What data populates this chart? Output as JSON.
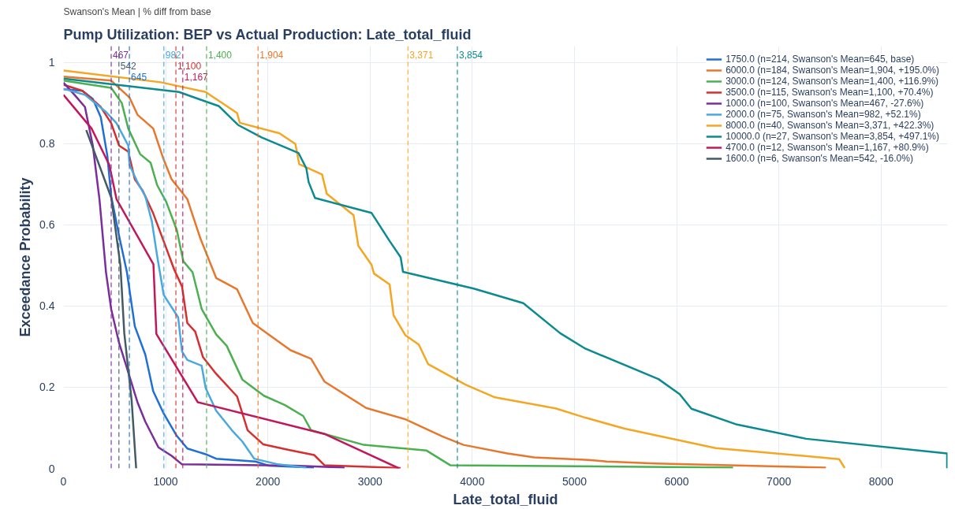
{
  "chart_data": {
    "type": "line",
    "title": "Pump Utilization: BEP vs Actual Production: Late_total_fluid",
    "subtitle": "Swanson's Mean | % diff from base",
    "xlabel": "Late_total_fluid",
    "ylabel": "Exceedance Probability",
    "xlim": [
      0,
      8650
    ],
    "ylim": [
      0,
      1.04
    ],
    "xticks": [
      0,
      1000,
      2000,
      3000,
      4000,
      5000,
      6000,
      7000,
      8000
    ],
    "yticks": [
      0,
      0.2,
      0.4,
      0.6,
      0.8,
      1
    ],
    "grid": true,
    "legend": "top right",
    "series": [
      {
        "name": "1750.0 (n=214, Swanson's Mean=645, base)",
        "color": "#1f6fd6",
        "x": [
          0,
          185,
          287,
          365,
          429,
          467,
          544,
          621,
          698,
          801,
          878,
          981,
          1109,
          1212,
          1391,
          1494,
          1879,
          2007,
          2450
        ],
        "values": [
          0.934,
          0.93,
          0.91,
          0.865,
          0.77,
          0.67,
          0.573,
          0.483,
          0.35,
          0.28,
          0.19,
          0.135,
          0.08,
          0.049,
          0.035,
          0.024,
          0.017,
          0.007,
          0.002
        ]
      },
      {
        "name": "6000.0 (n=184, Swanson's Mean=1,904, +195.0%)",
        "color": "#e8772e",
        "x": [
          0,
          467,
          647,
          724,
          878,
          981,
          1058,
          1212,
          1340,
          1494,
          1699,
          1853,
          2007,
          2222,
          2423,
          2553,
          2961,
          3345,
          3707,
          3914,
          4345,
          4606,
          5137,
          5314,
          5791,
          7460
        ],
        "values": [
          0.965,
          0.955,
          0.913,
          0.871,
          0.837,
          0.76,
          0.712,
          0.663,
          0.566,
          0.469,
          0.441,
          0.358,
          0.33,
          0.291,
          0.27,
          0.214,
          0.149,
          0.121,
          0.079,
          0.058,
          0.037,
          0.027,
          0.021,
          0.017,
          0.012,
          0.002
        ]
      },
      {
        "name": "3000.0 (n=124, Swanson's Mean=1,400, +116.9%)",
        "color": "#4caf50",
        "x": [
          0,
          467,
          570,
          634,
          750,
          852,
          916,
          1006,
          1109,
          1173,
          1263,
          1353,
          1494,
          1597,
          1750,
          1961,
          2167,
          2346,
          2423,
          2938,
          3553,
          3784,
          6552
        ],
        "values": [
          0.955,
          0.937,
          0.9,
          0.837,
          0.774,
          0.753,
          0.698,
          0.656,
          0.587,
          0.51,
          0.483,
          0.392,
          0.33,
          0.302,
          0.219,
          0.179,
          0.156,
          0.129,
          0.094,
          0.058,
          0.044,
          0.008,
          0.002
        ]
      },
      {
        "name": "3500.0 (n=115, Swanson's Mean=1,100, +70.4%)",
        "color": "#d62f2f",
        "x": [
          0,
          185,
          365,
          467,
          544,
          634,
          698,
          775,
          878,
          981,
          1083,
          1160,
          1212,
          1289,
          1365,
          1494,
          1699,
          1802,
          1956,
          2213,
          2453,
          2553,
          3299
        ],
        "values": [
          0.945,
          0.93,
          0.89,
          0.85,
          0.795,
          0.78,
          0.712,
          0.684,
          0.628,
          0.559,
          0.49,
          0.448,
          0.358,
          0.337,
          0.274,
          0.233,
          0.177,
          0.094,
          0.059,
          0.045,
          0.033,
          0.008,
          0.001
        ]
      },
      {
        "name": "1000.0 (n=100, Swanson's Mean=467, -27.6%)",
        "color": "#7b2d9c",
        "x": [
          0,
          108,
          210,
          287,
          352,
          416,
          467,
          544,
          621,
          724,
          801,
          929,
          1058,
          1160,
          2264,
          2750
        ],
        "values": [
          0.95,
          0.92,
          0.89,
          0.795,
          0.663,
          0.483,
          0.392,
          0.309,
          0.247,
          0.163,
          0.115,
          0.052,
          0.031,
          0.01,
          0.007,
          0.002
        ]
      },
      {
        "name": "2000.0 (n=75, Swanson's Mean=982, +52.1%)",
        "color": "#4aa8e0",
        "x": [
          0,
          210,
          416,
          519,
          634,
          647,
          724,
          801,
          865,
          916,
          981,
          1122,
          1160,
          1212,
          1352,
          1391,
          1494,
          1648,
          1751,
          1866,
          2100,
          2376
        ],
        "values": [
          0.935,
          0.92,
          0.878,
          0.85,
          0.795,
          0.747,
          0.705,
          0.67,
          0.608,
          0.524,
          0.427,
          0.372,
          0.288,
          0.267,
          0.253,
          0.198,
          0.142,
          0.094,
          0.066,
          0.024,
          0.01,
          0.002
        ]
      },
      {
        "name": "8000.0 (n=40, Swanson's Mean=3,371, +422.3%)",
        "color": "#f5a623",
        "x": [
          0,
          950,
          1391,
          1699,
          1725,
          2115,
          2269,
          2307,
          2530,
          2577,
          2838,
          2885,
          3015,
          3038,
          3191,
          3230,
          3345,
          3476,
          3568,
          3937,
          4222,
          4814,
          5106,
          5491,
          6383,
          7590,
          7644
        ],
        "values": [
          0.98,
          0.951,
          0.927,
          0.875,
          0.851,
          0.825,
          0.799,
          0.749,
          0.724,
          0.676,
          0.624,
          0.548,
          0.501,
          0.48,
          0.453,
          0.377,
          0.328,
          0.305,
          0.257,
          0.206,
          0.175,
          0.148,
          0.125,
          0.098,
          0.05,
          0.023,
          0.001
        ]
      },
      {
        "name": "10000.0 (n=27, Swanson's Mean=3,854, +497.1%)",
        "color": "#0b8a8f",
        "x": [
          0,
          1130,
          1522,
          1707,
          1938,
          2299,
          2376,
          2399,
          2461,
          3015,
          3191,
          3299,
          3322,
          4014,
          4499,
          4860,
          5106,
          5822,
          6029,
          6144,
          6590,
          7267,
          8646,
          8646
        ],
        "values": [
          0.96,
          0.927,
          0.892,
          0.846,
          0.815,
          0.777,
          0.739,
          0.705,
          0.666,
          0.629,
          0.56,
          0.52,
          0.484,
          0.443,
          0.407,
          0.333,
          0.295,
          0.22,
          0.183,
          0.147,
          0.108,
          0.073,
          0.037,
          0
        ]
      },
      {
        "name": "4700.0 (n=12, Swanson's Mean=1,167, +80.9%)",
        "color": "#c2185b",
        "x": [
          0,
          275,
          449,
          519,
          880,
          909,
          1314,
          2553,
          3284
        ],
        "values": [
          0.92,
          0.837,
          0.747,
          0.663,
          0.503,
          0.331,
          0.163,
          0.085,
          0
        ]
      },
      {
        "name": "1600.0 (n=6, Swanson's Mean=542, -16.0%)",
        "color": "#455a64",
        "x": [
          223,
          467,
          557,
          595,
          667,
          711
        ],
        "values": [
          0.833,
          0.667,
          0.5,
          0.333,
          0.167,
          0
        ]
      }
    ],
    "ref_lines": [
      {
        "axis": "x",
        "value": 645,
        "label": "645",
        "color": "#1f6fd6",
        "line_style": "dashed"
      },
      {
        "axis": "x",
        "value": 1904,
        "label": "1,904",
        "color": "#e8772e",
        "line_style": "dashed"
      },
      {
        "axis": "x",
        "value": 1400,
        "label": "1,400",
        "color": "#4caf50",
        "line_style": "dashed"
      },
      {
        "axis": "x",
        "value": 1100,
        "label": "1,100",
        "color": "#d62f2f",
        "line_style": "dashed"
      },
      {
        "axis": "x",
        "value": 467,
        "label": "467",
        "color": "#7b2d9c",
        "line_style": "dashed"
      },
      {
        "axis": "x",
        "value": 982,
        "label": "982",
        "color": "#4aa8e0",
        "line_style": "dashed"
      },
      {
        "axis": "x",
        "value": 3371,
        "label": "3,371",
        "color": "#f5a623",
        "line_style": "dashed"
      },
      {
        "axis": "x",
        "value": 3854,
        "label": "3,854",
        "color": "#0b8a8f",
        "line_style": "dashed"
      },
      {
        "axis": "x",
        "value": 1167,
        "label": "1,167",
        "color": "#c2185b",
        "line_style": "dashed"
      },
      {
        "axis": "x",
        "value": 542,
        "label": "542",
        "color": "#455a64",
        "line_style": "dashed"
      }
    ]
  }
}
